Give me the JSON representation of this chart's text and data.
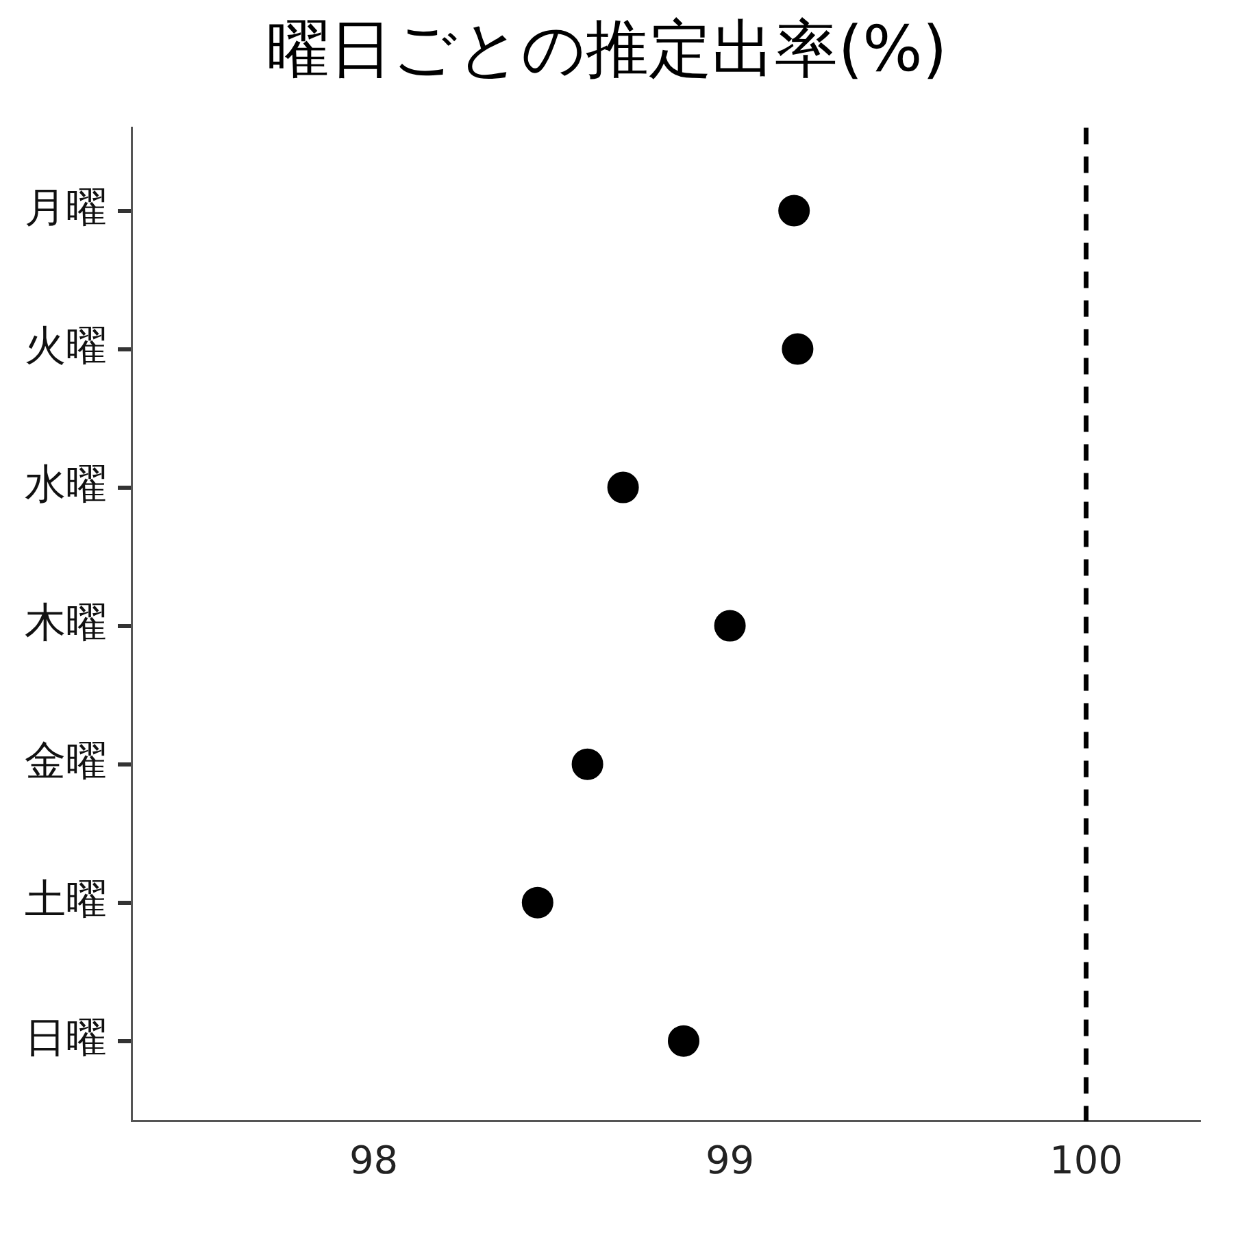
{
  "chart_data": {
    "type": "scatter",
    "title": "曜日ごとの推定出率(%)",
    "categories": [
      "月曜",
      "火曜",
      "水曜",
      "木曜",
      "金曜",
      "土曜",
      "日曜"
    ],
    "values": [
      99.18,
      99.19,
      98.7,
      99.0,
      98.6,
      98.46,
      98.87
    ],
    "color": "#000000",
    "marker": "circle",
    "orientation": "horizontal",
    "xlim": [
      97.32,
      100.32
    ],
    "xticks": [
      98,
      99,
      100
    ],
    "ref_lines": [
      {
        "axis": "x",
        "value": 100,
        "line_style": "dashed",
        "color": "#000000"
      }
    ]
  }
}
